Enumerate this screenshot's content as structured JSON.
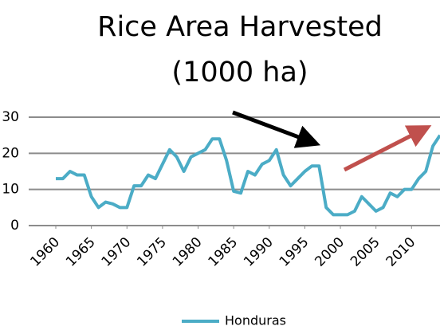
{
  "chart_data": {
    "type": "line",
    "title": "Rice  Area Harvested",
    "subtitle": "(1000 ha)",
    "x": [
      1960,
      1961,
      1962,
      1963,
      1964,
      1965,
      1966,
      1967,
      1968,
      1969,
      1970,
      1971,
      1972,
      1973,
      1974,
      1975,
      1976,
      1977,
      1978,
      1979,
      1980,
      1981,
      1982,
      1983,
      1984,
      1985,
      1986,
      1987,
      1988,
      1989,
      1990,
      1991,
      1992,
      1993,
      1994,
      1995,
      1996,
      1997,
      1998,
      1999,
      2000,
      2001,
      2002,
      2003,
      2004,
      2005,
      2006,
      2007,
      2008,
      2009,
      2010,
      2011,
      2012,
      2013,
      2014
    ],
    "series": [
      {
        "name": "Honduras",
        "color": "#4bacc6",
        "values": [
          13,
          13,
          15,
          14,
          14,
          8,
          5,
          6.5,
          6,
          5,
          5,
          11,
          11,
          14,
          13,
          17,
          21,
          19,
          15,
          19,
          20,
          21,
          24,
          24,
          18,
          9.5,
          9,
          15,
          14,
          17,
          18,
          21,
          14,
          11,
          13,
          15,
          16.5,
          16.5,
          5,
          3,
          3,
          3,
          4,
          8,
          6,
          4,
          5,
          9,
          8,
          10,
          10,
          13,
          15,
          22,
          25
        ]
      }
    ],
    "xlim": [
      1960,
      2014
    ],
    "xticks": [
      1960,
      1965,
      1970,
      1975,
      1980,
      1985,
      1990,
      1995,
      2000,
      2005,
      2010
    ],
    "ylim": [
      0,
      30
    ],
    "yticks": [
      0,
      10,
      20,
      30
    ],
    "grid": true,
    "legend": "bottom"
  }
}
